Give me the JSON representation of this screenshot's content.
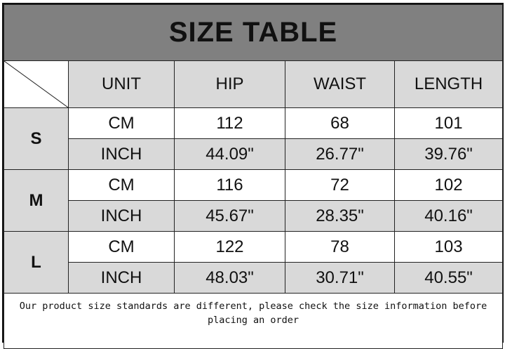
{
  "title": "SIZE TABLE",
  "headers": [
    "UNIT",
    "HIP",
    "WAIST",
    "LENGTH"
  ],
  "rows": [
    {
      "size": "S",
      "cm": {
        "unit": "CM",
        "hip": "112",
        "waist": "68",
        "length": "101"
      },
      "inch": {
        "unit": "INCH",
        "hip": "44.09\"",
        "waist": "26.77\"",
        "length": "39.76\""
      }
    },
    {
      "size": "M",
      "cm": {
        "unit": "CM",
        "hip": "116",
        "waist": "72",
        "length": "102"
      },
      "inch": {
        "unit": "INCH",
        "hip": "45.67\"",
        "waist": "28.35\"",
        "length": "40.16\""
      }
    },
    {
      "size": "L",
      "cm": {
        "unit": "CM",
        "hip": "122",
        "waist": "78",
        "length": "103"
      },
      "inch": {
        "unit": "INCH",
        "hip": "48.03\"",
        "waist": "30.71\"",
        "length": "40.55\""
      }
    }
  ],
  "note": "Our product size standards are different, please check the size information before placing an order",
  "colors": {
    "title_bg": "#808080",
    "cell_gray": "#d9d9d9"
  }
}
